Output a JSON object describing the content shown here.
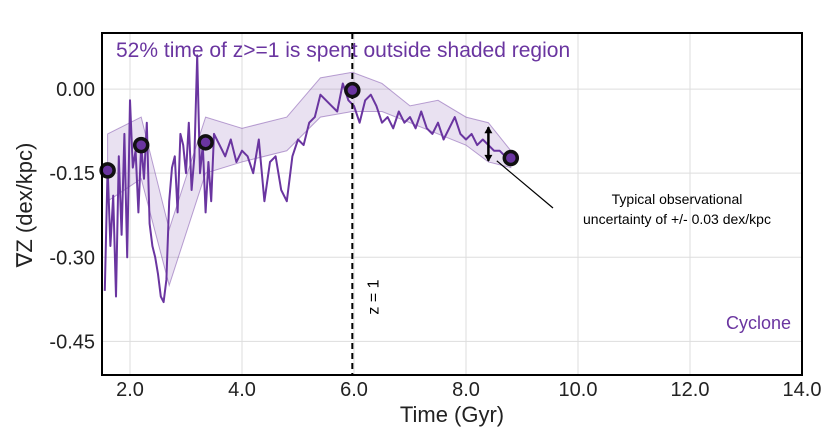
{
  "chart_data": {
    "type": "line",
    "title": "52% time of z>=1 is spent outside shaded region",
    "xlabel": "Time (Gyr)",
    "ylabel": "∇Z (dex/kpc)",
    "xlim": [
      1.5,
      14.0
    ],
    "ylim": [
      -0.51,
      0.1
    ],
    "x_ticks": [
      2.0,
      4.0,
      6.0,
      8.0,
      10.0,
      12.0,
      14.0
    ],
    "x_tick_labels": [
      "2.0",
      "4.0",
      "6.0",
      "8.0",
      "10.0",
      "12.0",
      "14.0"
    ],
    "y_ticks": [
      0.0,
      -0.15,
      -0.3,
      -0.45
    ],
    "y_tick_labels": [
      "0.00",
      "-0.15",
      "-0.30",
      "-0.45"
    ],
    "grid": true,
    "legend": "Cyclone",
    "colors": {
      "line": "#6a35a0",
      "band": "#6a35a0",
      "vline": "#000000",
      "marker_edge": "#111111"
    },
    "series": [
      {
        "name": "Cyclone",
        "x": [
          1.55,
          1.6,
          1.65,
          1.7,
          1.75,
          1.8,
          1.85,
          1.9,
          1.95,
          2.0,
          2.05,
          2.1,
          2.15,
          2.2,
          2.25,
          2.3,
          2.35,
          2.4,
          2.45,
          2.5,
          2.55,
          2.6,
          2.65,
          2.7,
          2.75,
          2.8,
          2.85,
          2.9,
          2.95,
          3.0,
          3.05,
          3.1,
          3.15,
          3.2,
          3.25,
          3.3,
          3.35,
          3.4,
          3.45,
          3.5,
          3.6,
          3.7,
          3.8,
          3.9,
          4.0,
          4.1,
          4.2,
          4.3,
          4.4,
          4.5,
          4.6,
          4.7,
          4.8,
          4.9,
          5.0,
          5.1,
          5.2,
          5.3,
          5.4,
          5.5,
          5.6,
          5.7,
          5.8,
          5.9,
          6.0,
          6.1,
          6.2,
          6.3,
          6.4,
          6.5,
          6.6,
          6.7,
          6.8,
          6.9,
          7.0,
          7.1,
          7.2,
          7.3,
          7.4,
          7.5,
          7.6,
          7.7,
          7.8,
          7.9,
          8.0,
          8.1,
          8.2,
          8.3,
          8.4,
          8.5,
          8.6,
          8.7,
          8.8
        ],
        "y": [
          -0.36,
          -0.14,
          -0.28,
          -0.19,
          -0.37,
          -0.12,
          -0.26,
          -0.08,
          -0.3,
          -0.02,
          -0.14,
          -0.11,
          -0.22,
          -0.1,
          -0.16,
          -0.06,
          -0.24,
          -0.28,
          -0.3,
          -0.33,
          -0.37,
          -0.38,
          -0.34,
          -0.2,
          -0.14,
          -0.12,
          -0.22,
          -0.08,
          -0.1,
          -0.15,
          -0.06,
          -0.18,
          -0.12,
          0.06,
          -0.15,
          -0.1,
          -0.22,
          -0.13,
          -0.2,
          -0.08,
          -0.1,
          -0.12,
          -0.09,
          -0.13,
          -0.11,
          -0.12,
          -0.15,
          -0.09,
          -0.2,
          -0.13,
          -0.12,
          -0.18,
          -0.2,
          -0.12,
          -0.09,
          -0.1,
          -0.06,
          -0.05,
          -0.01,
          -0.02,
          -0.03,
          -0.04,
          0.01,
          -0.02,
          -0.03,
          -0.06,
          -0.02,
          -0.01,
          -0.03,
          -0.06,
          -0.05,
          -0.07,
          -0.04,
          -0.06,
          -0.05,
          -0.07,
          -0.04,
          -0.07,
          -0.08,
          -0.06,
          -0.09,
          -0.07,
          -0.05,
          -0.08,
          -0.09,
          -0.08,
          -0.1,
          -0.09,
          -0.1,
          -0.11,
          -0.11,
          -0.12,
          -0.12
        ],
        "band_x": [
          1.6,
          2.2,
          2.7,
          3.35,
          4.0,
          4.8,
          5.4,
          5.97,
          6.5,
          7.0,
          7.5,
          8.0,
          8.4,
          8.8
        ],
        "band_lower": [
          -0.2,
          -0.16,
          -0.35,
          -0.15,
          -0.13,
          -0.11,
          -0.05,
          -0.04,
          -0.04,
          -0.06,
          -0.08,
          -0.1,
          -0.13,
          -0.14
        ],
        "band_upper": [
          -0.08,
          -0.05,
          -0.25,
          -0.05,
          -0.07,
          -0.05,
          0.02,
          0.03,
          0.01,
          -0.03,
          -0.02,
          -0.05,
          -0.06,
          -0.11
        ]
      }
    ],
    "markers": [
      {
        "x": 1.6,
        "y": -0.145
      },
      {
        "x": 2.2,
        "y": -0.1
      },
      {
        "x": 3.35,
        "y": -0.095
      },
      {
        "x": 5.97,
        "y": -0.002
      },
      {
        "x": 8.8,
        "y": -0.123
      }
    ],
    "vline": {
      "x": 5.97,
      "label": "z = 1"
    },
    "error_bar": {
      "x": 8.4,
      "y": -0.098,
      "half_height": 0.03
    },
    "annotation": {
      "lines": [
        "Typical observational",
        "uncertainty of +/- 0.03 dex/kpc"
      ],
      "arrow_to": {
        "x": 8.55,
        "y": -0.128
      }
    }
  }
}
